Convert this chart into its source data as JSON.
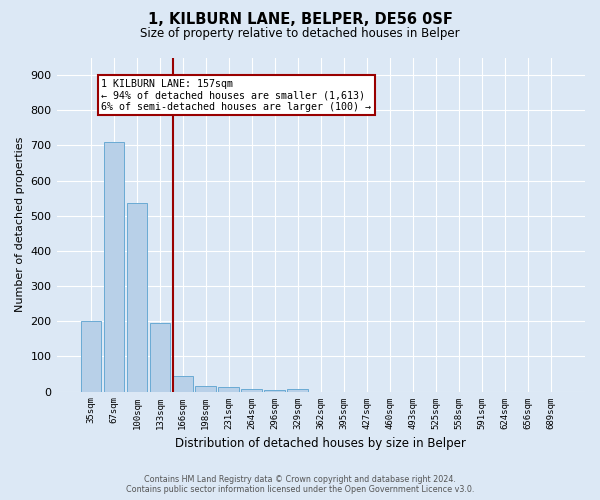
{
  "title": "1, KILBURN LANE, BELPER, DE56 0SF",
  "subtitle": "Size of property relative to detached houses in Belper",
  "xlabel": "Distribution of detached houses by size in Belper",
  "ylabel": "Number of detached properties",
  "categories": [
    "35sqm",
    "67sqm",
    "100sqm",
    "133sqm",
    "166sqm",
    "198sqm",
    "231sqm",
    "264sqm",
    "296sqm",
    "329sqm",
    "362sqm",
    "395sqm",
    "427sqm",
    "460sqm",
    "493sqm",
    "525sqm",
    "558sqm",
    "591sqm",
    "624sqm",
    "656sqm",
    "689sqm"
  ],
  "values": [
    200,
    710,
    535,
    195,
    45,
    15,
    12,
    8,
    5,
    8,
    0,
    0,
    0,
    0,
    0,
    0,
    0,
    0,
    0,
    0,
    0
  ],
  "bar_color": "#b8d0e8",
  "bar_edge_color": "#6aaad4",
  "ylim": [
    0,
    950
  ],
  "yticks": [
    0,
    100,
    200,
    300,
    400,
    500,
    600,
    700,
    800,
    900
  ],
  "vline_x_idx": 3.57,
  "vline_color": "#990000",
  "annotation_lines": [
    "1 KILBURN LANE: 157sqm",
    "← 94% of detached houses are smaller (1,613)",
    "6% of semi-detached houses are larger (100) →"
  ],
  "annotation_box_color": "#990000",
  "annotation_fill_color": "#ffffff",
  "footer_line1": "Contains HM Land Registry data © Crown copyright and database right 2024.",
  "footer_line2": "Contains public sector information licensed under the Open Government Licence v3.0.",
  "background_color": "#dce8f5",
  "grid_color": "#ffffff"
}
